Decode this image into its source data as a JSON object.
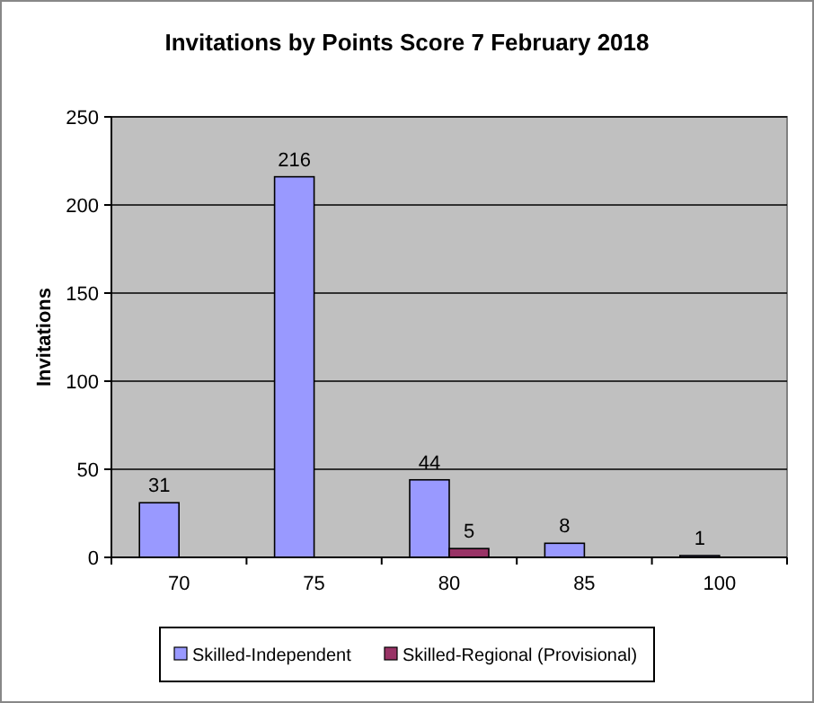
{
  "chart_data": {
    "type": "bar",
    "title": "Invitations by Points Score 7 February 2018",
    "ylabel": "Invitations",
    "categories": [
      "70",
      "75",
      "80",
      "85",
      "100"
    ],
    "series": [
      {
        "name": "Skilled-Independent",
        "color": "#9999ff",
        "values": [
          31,
          216,
          44,
          8,
          1
        ]
      },
      {
        "name": "Skilled-Regional (Provisional)",
        "color": "#993366",
        "values": [
          null,
          null,
          5,
          null,
          null
        ]
      }
    ],
    "ylim": [
      0,
      250
    ],
    "yticks": [
      0,
      50,
      100,
      150,
      200,
      250
    ],
    "grid": "y",
    "legend": "bottom",
    "data_labels": true
  }
}
